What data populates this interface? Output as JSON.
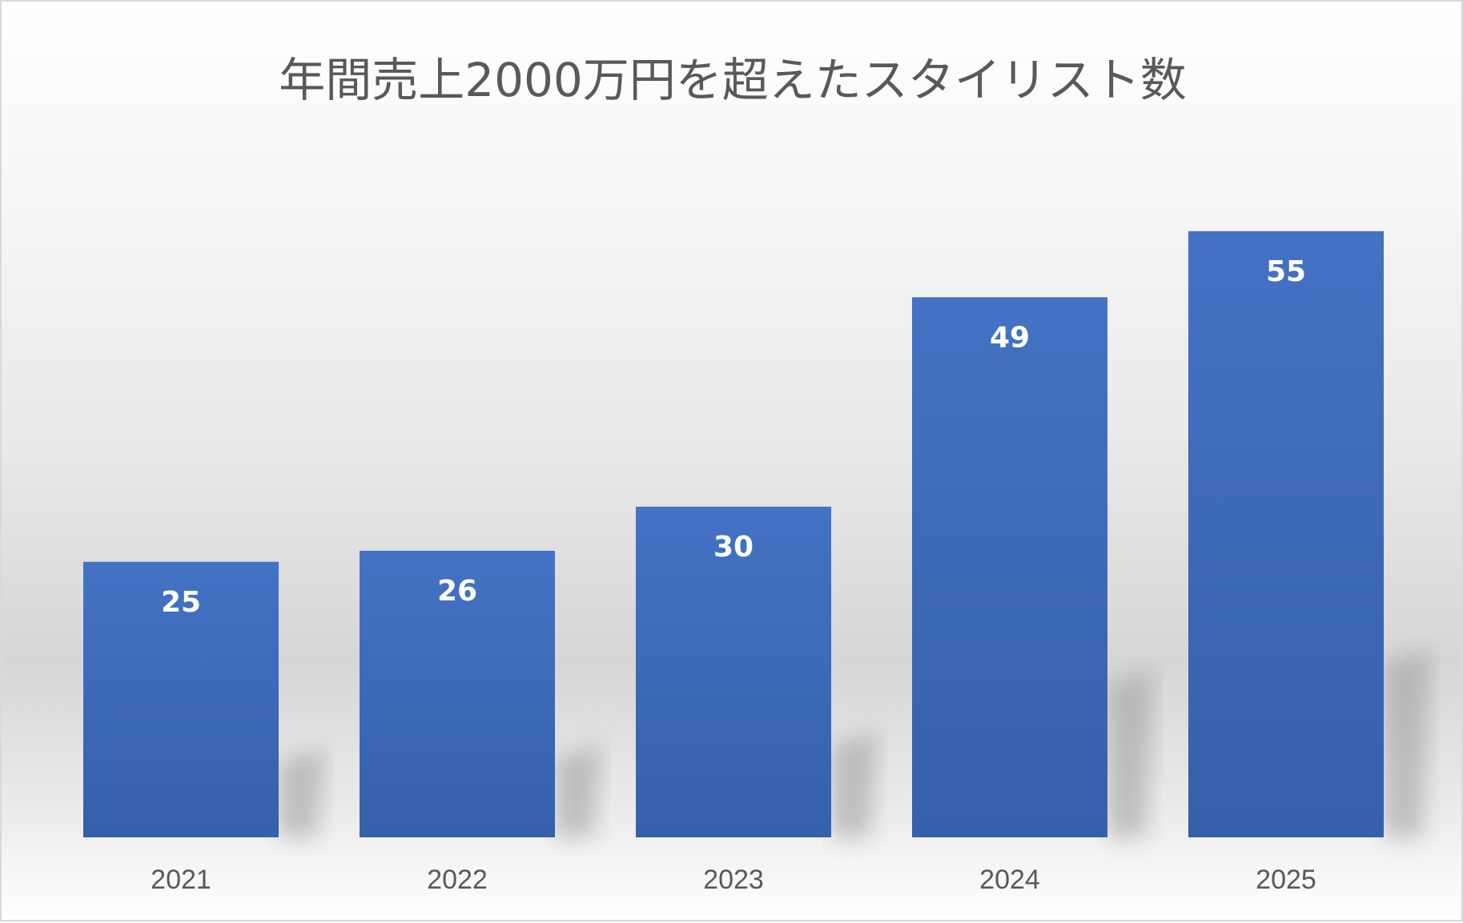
{
  "chart_data": {
    "type": "bar",
    "title": "年間売上2000万円を超えたスタイリスト数",
    "categories": [
      "2021",
      "2022",
      "2023",
      "2024",
      "2025"
    ],
    "values": [
      25,
      26,
      30,
      49,
      55
    ],
    "data_labels": [
      "25",
      "26",
      "30",
      "49",
      "55"
    ],
    "xlabel": "",
    "ylabel": "",
    "ylim": [
      0,
      60
    ],
    "grid": false,
    "legend": "none",
    "colors": {
      "bar_top": "#4472c4",
      "bar_bottom": "#3560aa",
      "title": "#595959",
      "ticks": "#595959",
      "data_label": "#ffffff"
    }
  }
}
